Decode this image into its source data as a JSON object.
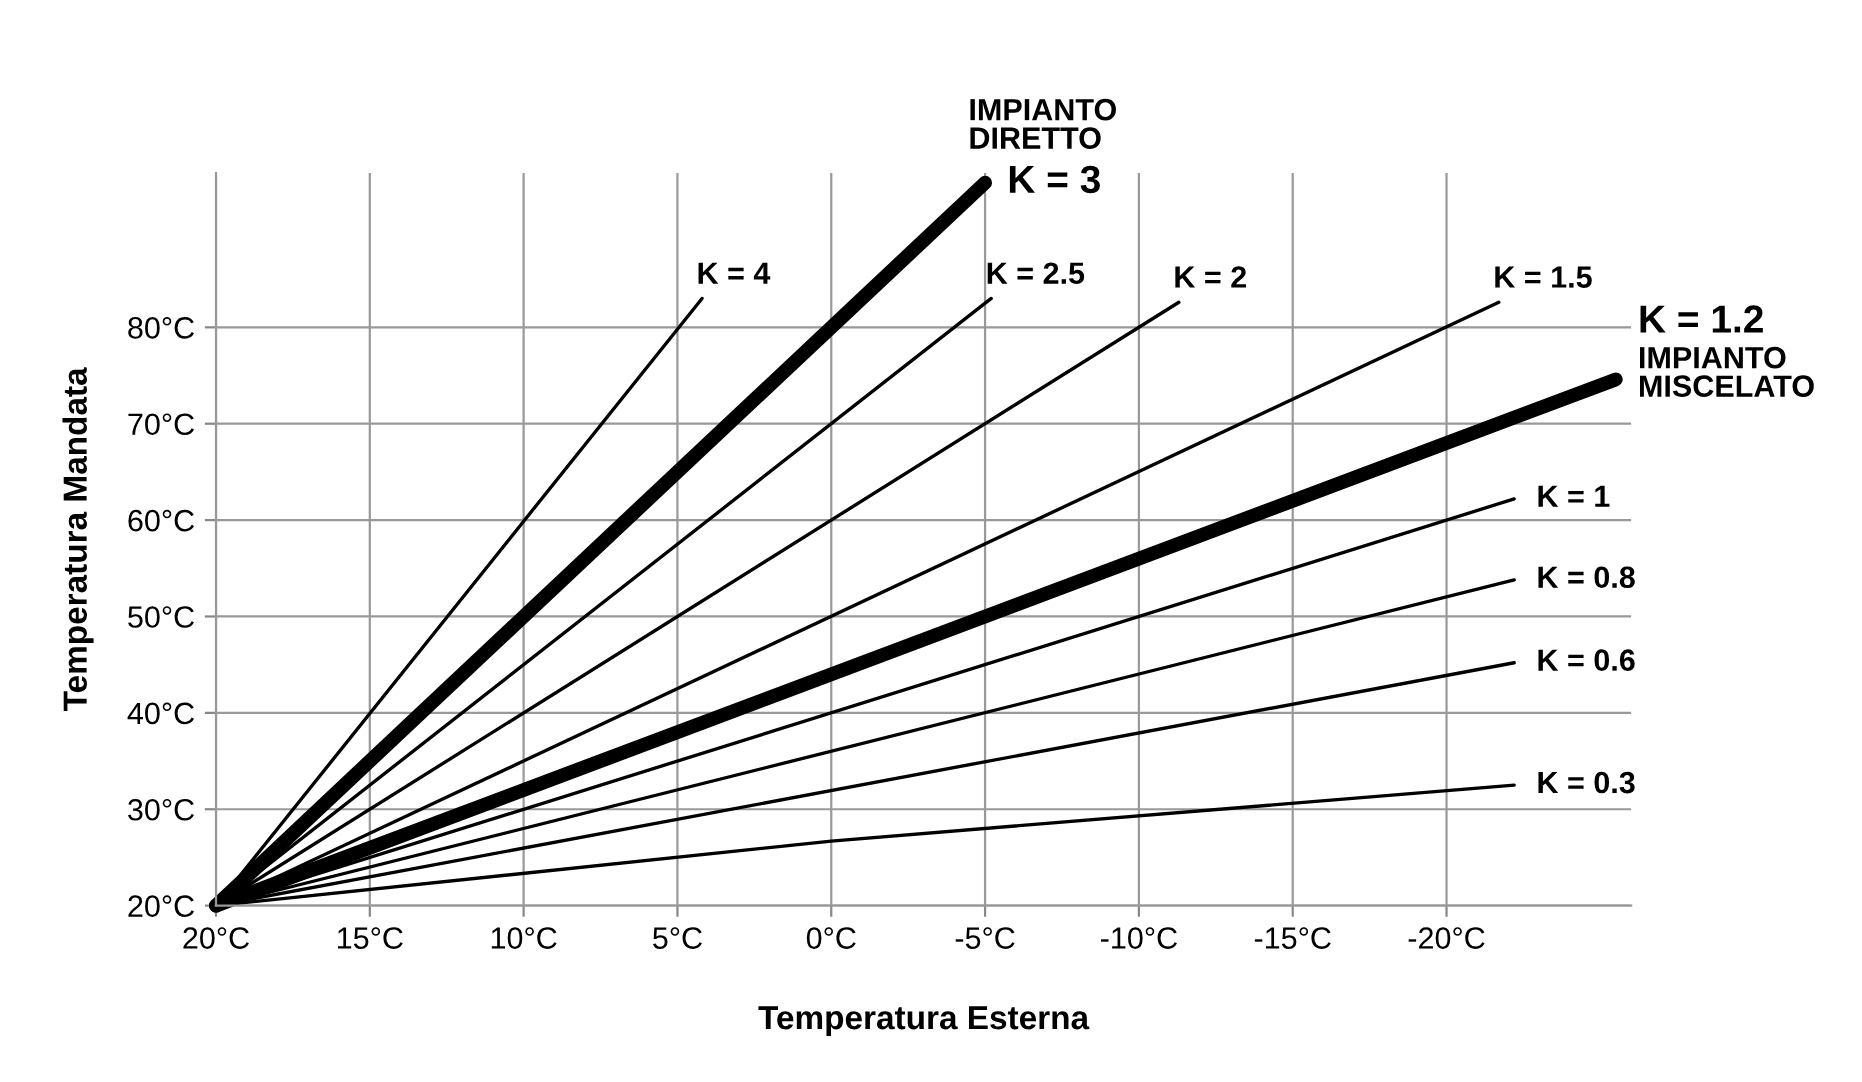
{
  "chart_data": {
    "type": "line",
    "xlabel": "Temperatura Esterna",
    "ylabel": "Temperatura Mandata",
    "xlim": [
      20,
      -26
    ],
    "ylim": [
      20,
      96
    ],
    "xticks": [
      {
        "value": 20,
        "label": "20°C"
      },
      {
        "value": 15,
        "label": "15°C"
      },
      {
        "value": 10,
        "label": "10°C"
      },
      {
        "value": 5,
        "label": "5°C"
      },
      {
        "value": 0,
        "label": "0°C"
      },
      {
        "value": -5,
        "label": "-5°C"
      },
      {
        "value": -10,
        "label": "-10°C"
      },
      {
        "value": -15,
        "label": "-15°C"
      },
      {
        "value": -20,
        "label": "-20°C"
      }
    ],
    "yticks": [
      {
        "value": 20,
        "label": "20°C"
      },
      {
        "value": 30,
        "label": "30°C"
      },
      {
        "value": 40,
        "label": "40°C"
      },
      {
        "value": 50,
        "label": "50°C"
      },
      {
        "value": 60,
        "label": "60°C"
      },
      {
        "value": 70,
        "label": "70°C"
      },
      {
        "value": 80,
        "label": "80°C"
      }
    ],
    "grid": true,
    "marker": "none",
    "line_style": "solid",
    "series": [
      {
        "name": "K = 4",
        "color": "#000000",
        "x": [
          20,
          4.2
        ],
        "values": [
          20,
          83
        ]
      },
      {
        "name": "K = 3",
        "color": "#000000",
        "x": [
          20,
          -5
        ],
        "values": [
          20,
          95
        ]
      },
      {
        "name": "K = 2.5",
        "color": "#000000",
        "x": [
          20,
          -5.2
        ],
        "values": [
          20,
          83
        ]
      },
      {
        "name": "K = 2",
        "color": "#000000",
        "x": [
          20,
          -11.3
        ],
        "values": [
          20,
          82.6
        ]
      },
      {
        "name": "K = 1.5",
        "color": "#000000",
        "x": [
          20,
          -21.7
        ],
        "values": [
          20,
          82.6
        ]
      },
      {
        "name": "K = 1.2",
        "color": "#000000",
        "x": [
          20,
          -25.5
        ],
        "values": [
          20,
          74.6
        ]
      },
      {
        "name": "K = 1",
        "color": "#000000",
        "x": [
          20,
          -22.2
        ],
        "values": [
          20,
          62.2
        ]
      },
      {
        "name": "K = 0.8",
        "color": "#000000",
        "x": [
          20,
          -22.2
        ],
        "values": [
          20,
          53.8
        ]
      },
      {
        "name": "K = 0.6",
        "color": "#000000",
        "x": [
          20,
          -22.2
        ],
        "values": [
          20,
          45.2
        ]
      },
      {
        "name": "K = 0.3",
        "color": "#000000",
        "x": [
          20,
          0,
          -22.2
        ],
        "values": [
          20,
          26.7,
          32.5
        ]
      }
    ],
    "annotations": [
      {
        "text": "IMPIANTO\nDIRETTO",
        "x": -5,
        "y": 95
      },
      {
        "text": "IMPIANTO\nMISCELATO",
        "x": -25.5,
        "y": 74.6
      }
    ]
  }
}
